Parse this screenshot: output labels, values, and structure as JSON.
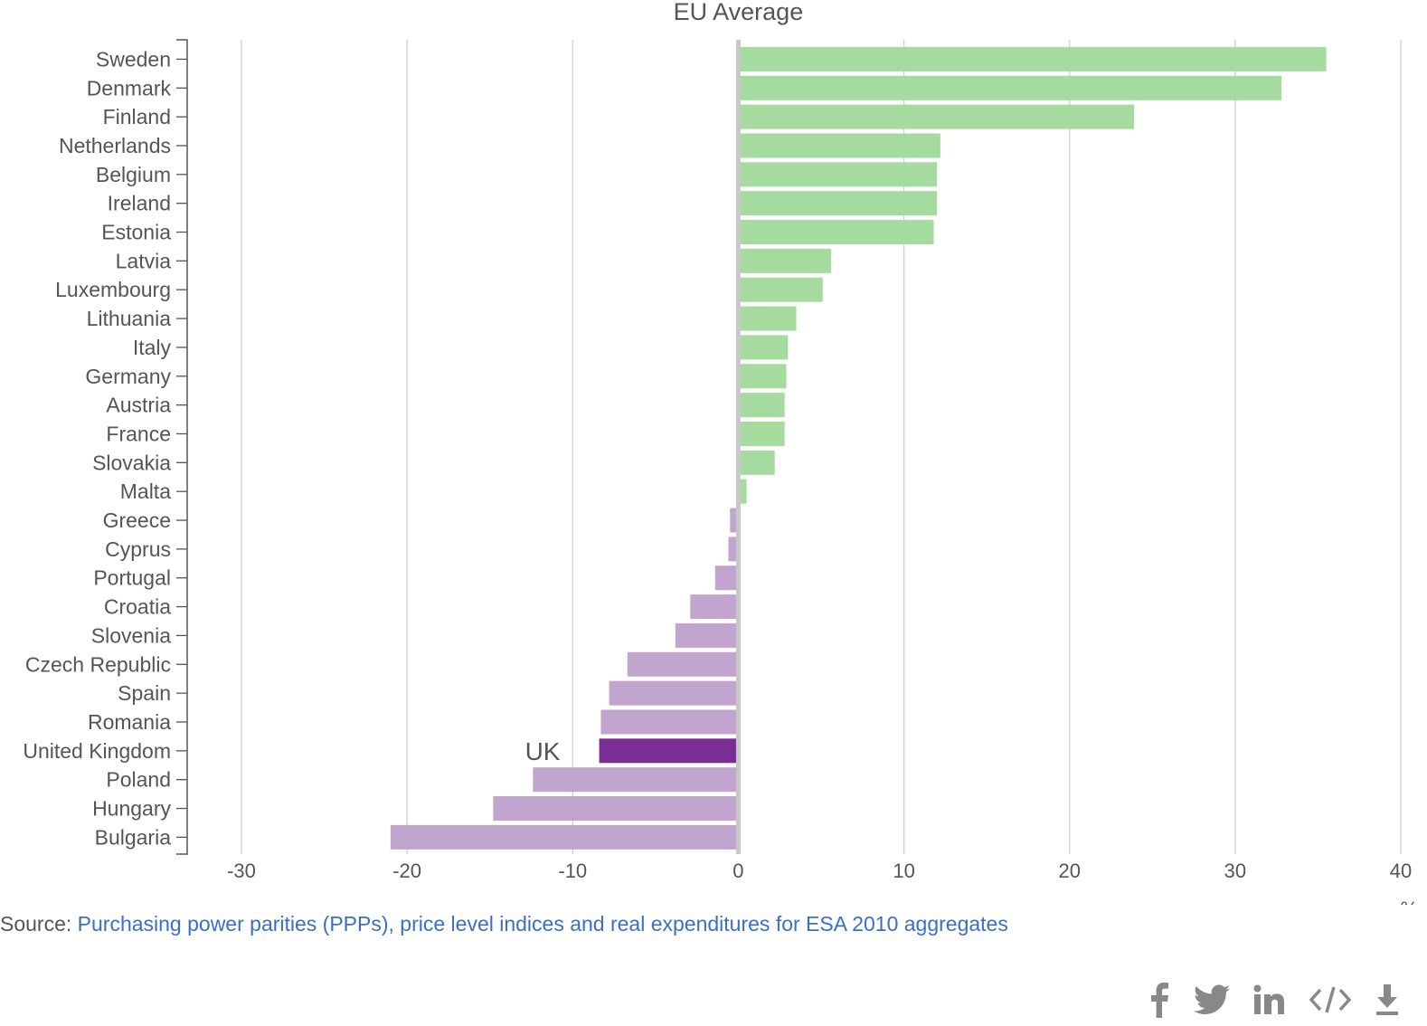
{
  "chart_data": {
    "type": "bar",
    "orientation": "horizontal",
    "reference_line_label": "EU Average",
    "categories": [
      "Sweden",
      "Denmark",
      "Finland",
      "Netherlands",
      "Belgium",
      "Ireland",
      "Estonia",
      "Latvia",
      "Luxembourg",
      "Lithuania",
      "Italy",
      "Germany",
      "Austria",
      "France",
      "Slovakia",
      "Malta",
      "Greece",
      "Cyprus",
      "Portugal",
      "Croatia",
      "Slovenia",
      "Czech Republic",
      "Spain",
      "Romania",
      "United Kingdom",
      "Poland",
      "Hungary",
      "Bulgaria"
    ],
    "values": [
      35.5,
      32.8,
      23.9,
      12.2,
      12.0,
      12.0,
      11.8,
      5.6,
      5.1,
      3.5,
      3.0,
      2.9,
      2.8,
      2.8,
      2.2,
      0.5,
      -0.5,
      -0.6,
      -1.4,
      -2.9,
      -3.8,
      -6.7,
      -7.8,
      -8.3,
      -8.4,
      -12.4,
      -14.8,
      -21.0
    ],
    "xlim": [
      -30,
      40
    ],
    "xticks": [
      -30,
      -20,
      -10,
      0,
      10,
      20,
      30,
      40
    ],
    "xunit": "%",
    "highlight": {
      "category": "United Kingdom",
      "label": "UK",
      "color": "#7b2d96"
    },
    "colors": {
      "positive": "#a6dba0",
      "negative": "#c2a5cf",
      "zero_line": "#c8c8c8",
      "grid": "#d4d4d4"
    },
    "grid": true
  },
  "source": {
    "prefix": "Source: ",
    "link_text": "Purchasing power parities (PPPs), price level indices and real expenditures for ESA 2010 aggregates"
  },
  "share": {
    "icons": [
      "facebook-icon",
      "twitter-icon",
      "linkedin-icon",
      "embed-code-icon",
      "download-icon"
    ]
  }
}
